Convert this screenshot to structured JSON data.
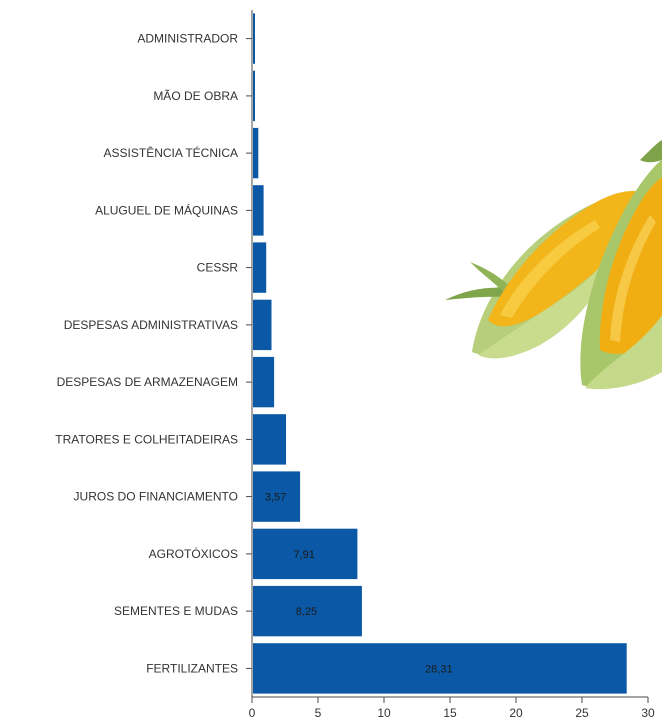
{
  "chart_data": {
    "type": "bar",
    "orientation": "horizontal",
    "categories": [
      "ADMINISTRADOR",
      "MÃO DE OBRA",
      "ASSISTÊNCIA TÉCNICA",
      "ALUGUEL DE MÁQUINAS",
      "CESSR",
      "DESPESAS ADMINISTRATIVAS",
      "DESPESAS DE ARMAZENAGEM",
      "TRATORES E COLHEITADEIRAS",
      "JUROS DO FINANCIAMENTO",
      "AGROTÓXICOS",
      "SEMENTES E MUDAS",
      "FERTILIZANTES"
    ],
    "values": [
      0.1,
      0.1,
      0.4,
      0.8,
      1.0,
      1.4,
      1.6,
      2.5,
      3.57,
      7.91,
      8.25,
      28.31
    ],
    "data_labels": [
      "",
      "",
      "",
      "",
      "",
      "",
      "",
      "",
      "3,57",
      "7,91",
      "8,25",
      "28,31"
    ],
    "xlim": [
      0,
      30
    ],
    "xticks": [
      0,
      5,
      10,
      15,
      20,
      25,
      30
    ],
    "bar_color": "#0a58a6",
    "grid": false,
    "decoration": "corn-cobs-image"
  }
}
